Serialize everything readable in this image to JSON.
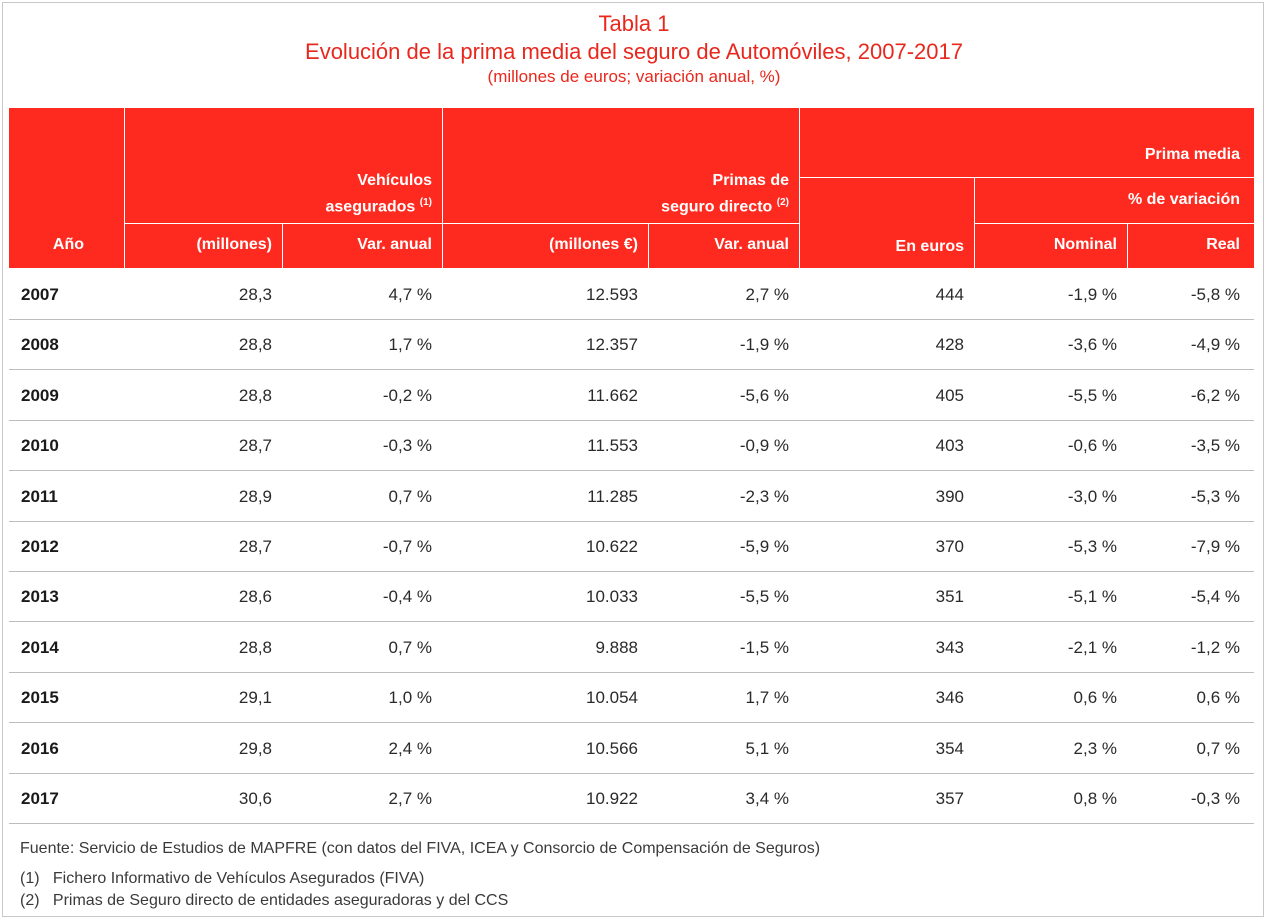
{
  "title": {
    "line1": "Tabla 1",
    "line2": "Evolución de la prima media del seguro de Automóviles, 2007-2017",
    "line3": "(millones de euros; variación anual, %)"
  },
  "header": {
    "ano": "Año",
    "vehiculos_line1": "Vehículos",
    "vehiculos_line2": "asegurados",
    "vehiculos_sup": "(1)",
    "veh_millones": "(millones)",
    "veh_var": "Var. anual",
    "primas_line1": "Primas de",
    "primas_line2": "seguro directo",
    "primas_sup": "(2)",
    "primas_millones": "(millones €)",
    "primas_var": "Var. anual",
    "prima_media": "Prima media",
    "en_euros": "En euros",
    "pct_variacion": "% de variación",
    "nominal": "Nominal",
    "real": "Real"
  },
  "rows": [
    {
      "year": "2007",
      "veh": "28,3",
      "veh_var": "4,7 %",
      "primas": "12.593",
      "primas_var": "2,7 %",
      "euros": "444",
      "nominal": "-1,9 %",
      "real": "-5,8 %"
    },
    {
      "year": "2008",
      "veh": "28,8",
      "veh_var": "1,7 %",
      "primas": "12.357",
      "primas_var": "-1,9 %",
      "euros": "428",
      "nominal": "-3,6 %",
      "real": "-4,9 %"
    },
    {
      "year": "2009",
      "veh": "28,8",
      "veh_var": "-0,2 %",
      "primas": "11.662",
      "primas_var": "-5,6 %",
      "euros": "405",
      "nominal": "-5,5 %",
      "real": "-6,2 %"
    },
    {
      "year": "2010",
      "veh": "28,7",
      "veh_var": "-0,3 %",
      "primas": "11.553",
      "primas_var": "-0,9 %",
      "euros": "403",
      "nominal": "-0,6 %",
      "real": "-3,5 %"
    },
    {
      "year": "2011",
      "veh": "28,9",
      "veh_var": "0,7 %",
      "primas": "11.285",
      "primas_var": "-2,3 %",
      "euros": "390",
      "nominal": "-3,0 %",
      "real": "-5,3 %"
    },
    {
      "year": "2012",
      "veh": "28,7",
      "veh_var": "-0,7 %",
      "primas": "10.622",
      "primas_var": "-5,9 %",
      "euros": "370",
      "nominal": "-5,3 %",
      "real": "-7,9 %"
    },
    {
      "year": "2013",
      "veh": "28,6",
      "veh_var": "-0,4 %",
      "primas": "10.033",
      "primas_var": "-5,5 %",
      "euros": "351",
      "nominal": "-5,1 %",
      "real": "-5,4 %"
    },
    {
      "year": "2014",
      "veh": "28,8",
      "veh_var": "0,7 %",
      "primas": "9.888",
      "primas_var": "-1,5 %",
      "euros": "343",
      "nominal": "-2,1 %",
      "real": "-1,2 %"
    },
    {
      "year": "2015",
      "veh": "29,1",
      "veh_var": "1,0 %",
      "primas": "10.054",
      "primas_var": "1,7 %",
      "euros": "346",
      "nominal": "0,6 %",
      "real": "0,6 %"
    },
    {
      "year": "2016",
      "veh": "29,8",
      "veh_var": "2,4 %",
      "primas": "10.566",
      "primas_var": "5,1 %",
      "euros": "354",
      "nominal": "2,3 %",
      "real": "0,7 %"
    },
    {
      "year": "2017",
      "veh": "30,6",
      "veh_var": "2,7 %",
      "primas": "10.922",
      "primas_var": "3,4 %",
      "euros": "357",
      "nominal": "0,8 %",
      "real": "-0,3 %"
    }
  ],
  "notes": {
    "source": "Fuente: Servicio de Estudios de MAPFRE (con datos del FIVA, ICEA y Consorcio de Compensación de Seguros)",
    "note1_num": "(1)",
    "note1_text": "Fichero Informativo de Vehículos Asegurados (FIVA)",
    "note2_num": "(2)",
    "note2_text": "Primas de Seguro directo de entidades aseguradoras y del CCS"
  },
  "colors": {
    "accent": "#ff2a1f",
    "title_red": "#e8281d"
  }
}
